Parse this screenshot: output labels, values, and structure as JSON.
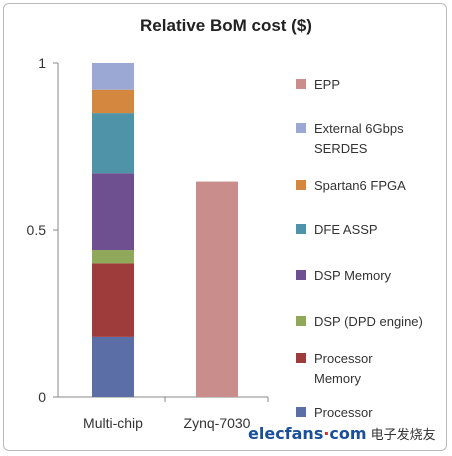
{
  "chart_data": {
    "type": "bar",
    "stacked": true,
    "title": "Relative BoM cost ($)",
    "categories": [
      "Multi-chip",
      "Zynq-7030"
    ],
    "ylim": [
      0,
      1
    ],
    "yticks": [
      "0",
      "0.5",
      "1"
    ],
    "grid": false,
    "legend_position": "right",
    "series": [
      {
        "name": "Processor",
        "color": "#5b6fa6",
        "values": [
          0.18,
          0
        ]
      },
      {
        "name": "Processor Memory",
        "color": "#9e3b3b",
        "values": [
          0.22,
          0
        ]
      },
      {
        "name": "DSP (DPD engine)",
        "color": "#8fa85a",
        "values": [
          0.04,
          0
        ]
      },
      {
        "name": "DSP Memory",
        "color": "#6e4f8f",
        "values": [
          0.23,
          0
        ]
      },
      {
        "name": "DFE ASSP",
        "color": "#4f93a9",
        "values": [
          0.18,
          0
        ]
      },
      {
        "name": "Spartan6 FPGA",
        "color": "#d4873e",
        "values": [
          0.07,
          0
        ]
      },
      {
        "name": "External 6Gbps SERDES",
        "color": "#9ba8d3",
        "values": [
          0.08,
          0
        ]
      },
      {
        "name": "EPP",
        "color": "#c98d8b",
        "values": [
          0,
          0.645
        ]
      }
    ],
    "legend_order": [
      "EPP",
      "External 6Gbps SERDES",
      "Spartan6 FPGA",
      "DFE ASSP",
      "DSP Memory",
      "DSP (DPD engine)",
      "Processor Memory",
      "Processor"
    ]
  },
  "watermark": {
    "brand": "elecfans",
    "dot": "·",
    "suffix": "com",
    "cn": "电子发烧友"
  }
}
